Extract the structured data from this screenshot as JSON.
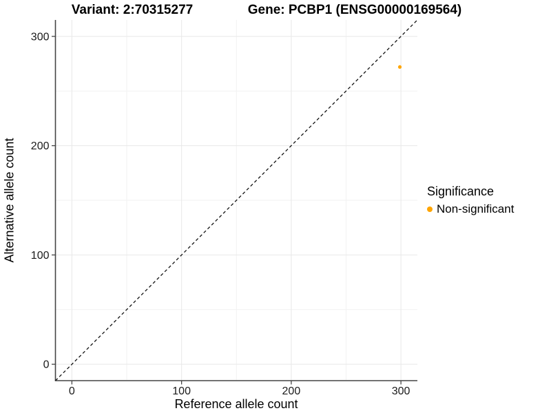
{
  "titles": {
    "variant": "Variant: 2:70315277",
    "gene": "Gene: PCBP1 (ENSG00000169564)"
  },
  "axes": {
    "x_title": "Reference allele count",
    "y_title": "Alternative allele count"
  },
  "legend": {
    "title": "Significance",
    "entries": [
      {
        "label": "Non-significant",
        "color": "#FFA500"
      }
    ]
  },
  "chart_data": {
    "type": "scatter",
    "title": "Variant: 2:70315277   Gene: PCBP1 (ENSG00000169564)",
    "xlabel": "Reference allele count",
    "ylabel": "Alternative allele count",
    "xlim": [
      -15,
      315
    ],
    "ylim": [
      -15,
      315
    ],
    "x_ticks": [
      0,
      100,
      200,
      300
    ],
    "y_ticks": [
      0,
      100,
      200,
      300
    ],
    "x_minor_ticks": [
      50,
      150,
      250
    ],
    "y_minor_ticks": [
      50,
      150,
      250
    ],
    "grid": true,
    "legend_position": "right",
    "reference_line": {
      "equation": "y = x",
      "style": "dashed",
      "color": "#111111"
    },
    "series": [
      {
        "name": "Non-significant",
        "color": "#FFA500",
        "points": [
          {
            "x": 299,
            "y": 272
          }
        ]
      }
    ]
  },
  "colors": {
    "grid_major": "#E8E8E8",
    "grid_minor": "#F2F2F2",
    "axis_line": "#444444",
    "tick_text": "#1a1a1a"
  }
}
